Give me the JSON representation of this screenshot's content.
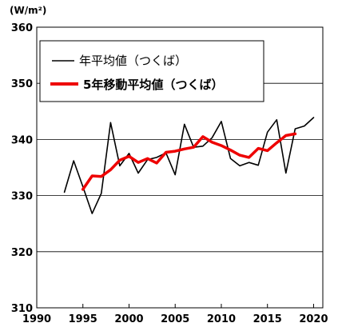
{
  "chart_data": {
    "type": "line",
    "title": "",
    "unit_label": "(W/m²)",
    "xlabel": "",
    "ylabel": "",
    "xlim": [
      1990,
      2021
    ],
    "ylim": [
      310,
      360
    ],
    "xticks": [
      1990,
      1995,
      2000,
      2005,
      2010,
      2015,
      2020
    ],
    "yticks": [
      310,
      320,
      330,
      340,
      350,
      360
    ],
    "grid": "horizontal",
    "legend_position": "top-left",
    "series": [
      {
        "name": "年平均値（つくば）",
        "color": "#000000",
        "x": [
          1993,
          1994,
          1995,
          1996,
          1997,
          1998,
          1999,
          2000,
          2001,
          2002,
          2003,
          2004,
          2005,
          2006,
          2007,
          2008,
          2009,
          2010,
          2011,
          2012,
          2013,
          2014,
          2015,
          2016,
          2017,
          2018,
          2019,
          2020
        ],
        "values": [
          330.6,
          336.2,
          331.6,
          326.8,
          330.4,
          343.0,
          335.3,
          337.5,
          334.0,
          336.4,
          336.8,
          337.6,
          333.7,
          342.7,
          338.6,
          338.8,
          340.3,
          343.2,
          336.6,
          335.3,
          335.9,
          335.4,
          341.3,
          343.5,
          334.0,
          341.9,
          342.4,
          343.9
        ]
      },
      {
        "name": "5年移動平均値（つくば）",
        "color": "#ee0000",
        "x": [
          1995,
          1996,
          1997,
          1998,
          1999,
          2000,
          2001,
          2002,
          2003,
          2004,
          2005,
          2006,
          2007,
          2008,
          2009,
          2010,
          2011,
          2012,
          2013,
          2014,
          2015,
          2016,
          2017,
          2018
        ],
        "values": [
          331.1,
          333.5,
          333.4,
          334.6,
          336.3,
          337.0,
          335.9,
          336.6,
          335.8,
          337.7,
          337.9,
          338.3,
          338.6,
          340.5,
          339.5,
          338.9,
          338.1,
          337.2,
          336.8,
          338.4,
          338.0,
          339.4,
          340.7,
          341.0
        ]
      }
    ]
  }
}
